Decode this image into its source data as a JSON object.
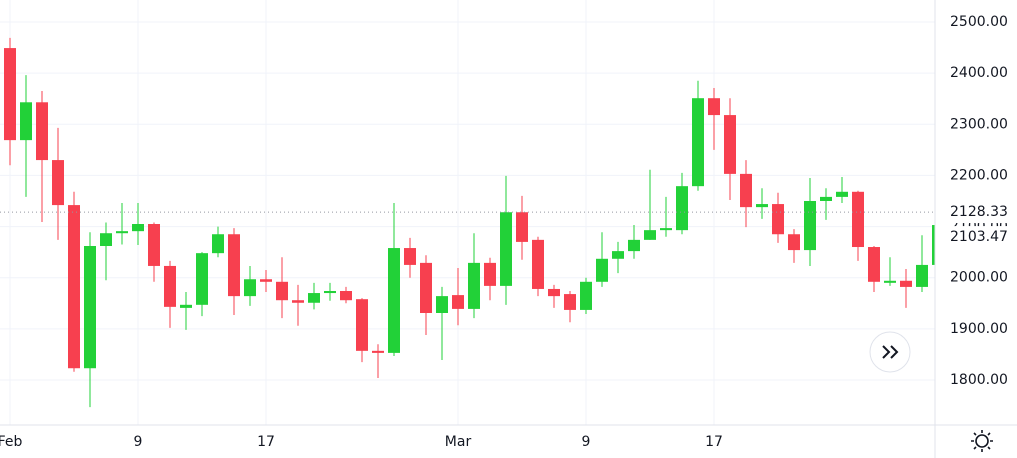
{
  "chart_data": {
    "type": "candlestick",
    "categories": [
      "Feb",
      null,
      null,
      null,
      null,
      null,
      null,
      null,
      "9",
      null,
      null,
      null,
      null,
      null,
      null,
      null,
      "17",
      null,
      null,
      null,
      null,
      null,
      null,
      null,
      null,
      null,
      null,
      null,
      "Mar",
      null,
      null,
      null,
      null,
      null,
      null,
      null,
      "9",
      null,
      null,
      null,
      null,
      null,
      null,
      null,
      "17",
      null,
      null,
      null,
      null,
      null,
      null,
      null,
      null,
      null,
      null,
      null,
      null,
      null,
      null
    ],
    "open": [
      2449,
      2269,
      2343,
      2230,
      2142,
      1823,
      2062,
      2087,
      2091,
      2105,
      2023,
      1941,
      1947,
      2048,
      2085,
      1964,
      1997,
      1992,
      1956,
      1951,
      1970,
      1974,
      1958,
      1857,
      1853,
      2058,
      2029,
      1931,
      1966,
      1939,
      2029,
      1984,
      2128,
      2074,
      1978,
      1968,
      1937,
      1992,
      2037,
      2052,
      2074,
      2093,
      2093,
      2179,
      2351,
      2318,
      2203,
      2138,
      2144,
      2085,
      2054,
      2150,
      2158,
      2168,
      2060,
      1990,
      1994,
      1982,
      2025
    ],
    "high": [
      2469,
      2396,
      2365,
      2293,
      2168,
      2089,
      2108,
      2146,
      2146,
      2108,
      2033,
      1972,
      2050,
      2100,
      2097,
      2023,
      2015,
      2040,
      1986,
      1990,
      1990,
      1982,
      1960,
      1870,
      2146,
      2078,
      2044,
      1982,
      2019,
      2087,
      2039,
      2199,
      2160,
      2080,
      1986,
      1974,
      2000,
      2089,
      2070,
      2103,
      2211,
      2158,
      2205,
      2385,
      2371,
      2351,
      2230,
      2175,
      2166,
      2095,
      2195,
      2175,
      2197,
      2170,
      2062,
      2040,
      2017,
      2083,
      2110
    ],
    "low": [
      2220,
      2158,
      2109,
      2074,
      1816,
      1747,
      1995,
      2065,
      2064,
      1992,
      1902,
      1898,
      1925,
      2040,
      1927,
      1945,
      1972,
      1921,
      1906,
      1938,
      1955,
      1950,
      1835,
      1804,
      1847,
      2000,
      1888,
      1839,
      1907,
      1921,
      1956,
      1947,
      2035,
      1964,
      1941,
      1913,
      1929,
      1982,
      2009,
      2037,
      2074,
      2080,
      2085,
      2170,
      2250,
      2152,
      2099,
      2115,
      2068,
      2029,
      2023,
      2113,
      2146,
      2033,
      1972,
      1984,
      1941,
      1972,
      2025
    ],
    "close": [
      2269,
      2343,
      2230,
      2142,
      1823,
      2062,
      2087,
      2091,
      2105,
      2023,
      1943,
      1947,
      2048,
      2085,
      1964,
      1997,
      1992,
      1956,
      1951,
      1970,
      1974,
      1956,
      1857,
      1853,
      2058,
      2025,
      1931,
      1964,
      1939,
      2029,
      1984,
      2128,
      2070,
      1978,
      1964,
      1937,
      1992,
      2037,
      2052,
      2074,
      2093,
      2097,
      2179,
      2351,
      2318,
      2203,
      2138,
      2144,
      2085,
      2054,
      2150,
      2158,
      2168,
      2060,
      1992,
      1994,
      1982,
      2025,
      2103
    ],
    "up_color": "#22d138",
    "down_color": "#f7404f",
    "ylim": [
      1712,
      2543
    ],
    "yticks": [
      {
        "value": 1800,
        "label": "1800.00"
      },
      {
        "value": 1900,
        "label": "1900.00"
      },
      {
        "value": 2000,
        "label": "2000.00"
      },
      {
        "value": 2100,
        "label": "2100.00"
      },
      {
        "value": 2200,
        "label": "2200.00"
      },
      {
        "value": 2300,
        "label": "2300.00"
      },
      {
        "value": 2400,
        "label": "2400.00"
      },
      {
        "value": 2500,
        "label": "2500.00"
      }
    ],
    "price_labels": [
      2128.33,
      2103.47
    ],
    "grid": true
  }
}
